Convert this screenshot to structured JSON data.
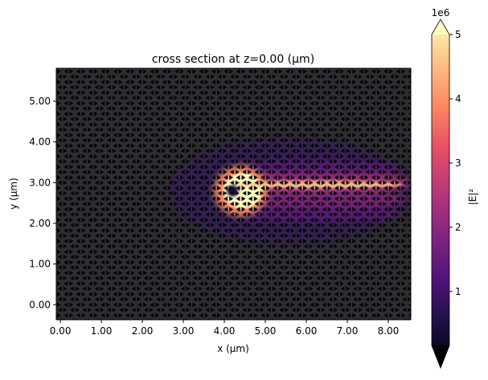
{
  "chart_data": {
    "type": "heatmap",
    "title": "cross section at z=0.00 (µm)",
    "xlabel": "x (µm)",
    "ylabel": "y (µm)",
    "xlim": [
      -0.1,
      8.55
    ],
    "ylim": [
      -0.37,
      5.81
    ],
    "xticks": [
      0,
      1,
      2,
      3,
      4,
      5,
      6,
      7,
      8
    ],
    "xtick_labels": [
      "0.00",
      "1.00",
      "2.00",
      "3.00",
      "4.00",
      "5.00",
      "6.00",
      "7.00",
      "8.00"
    ],
    "yticks": [
      0,
      1,
      2,
      3,
      4,
      5
    ],
    "ytick_labels": [
      "0.00",
      "1.00",
      "2.00",
      "3.00",
      "4.00",
      "5.00"
    ],
    "grid": false,
    "colormap": "magma",
    "background_color": "#2f2e33",
    "colorbar": {
      "label": "|E|²",
      "offset_text": "1e6",
      "ticks": [
        1,
        2,
        3,
        4,
        5
      ],
      "tick_labels": [
        "1",
        "2",
        "3",
        "4",
        "5"
      ],
      "range": [
        0.16,
        5
      ],
      "extend": "both"
    }
  }
}
